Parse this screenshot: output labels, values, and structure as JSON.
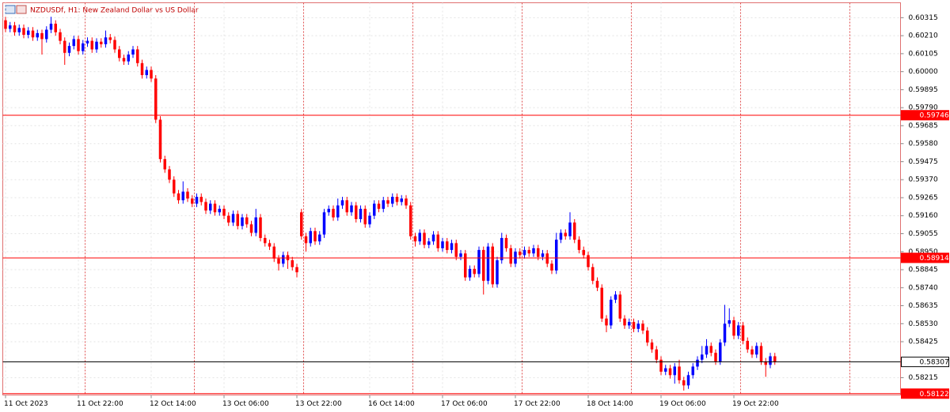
{
  "chart_data": {
    "type": "candlestick",
    "title": "NZDUSDf, H1:  New Zealand Dollar vs US Dollar",
    "categories": [
      "11 Oct 2023",
      null,
      null,
      null,
      null,
      null,
      null,
      null,
      null,
      null,
      null,
      null,
      null,
      null,
      null,
      null,
      "11 Oct 22:00",
      null,
      null,
      null,
      null,
      null,
      null,
      null,
      null,
      null,
      null,
      null,
      null,
      null,
      null,
      null,
      "12 Oct 14:00",
      null,
      null,
      null,
      null,
      null,
      null,
      null,
      null,
      null,
      null,
      null,
      null,
      null,
      null,
      null,
      "13 Oct 06:00",
      null,
      null,
      null,
      null,
      null,
      null,
      null,
      null,
      null,
      null,
      null,
      null,
      null,
      null,
      null,
      "13 Oct 22:00",
      null,
      null,
      null,
      null,
      null,
      null,
      null,
      null,
      null,
      null,
      null,
      null,
      null,
      null,
      null,
      "16 Oct 14:00",
      null,
      null,
      null,
      null,
      null,
      null,
      null,
      null,
      null,
      null,
      null,
      null,
      null,
      null,
      null,
      "17 Oct 06:00",
      null,
      null,
      null,
      null,
      null,
      null,
      null,
      null,
      null,
      null,
      null,
      null,
      null,
      null,
      null,
      "17 Oct 22:00",
      null,
      null,
      null,
      null,
      null,
      null,
      null,
      null,
      null,
      null,
      null,
      null,
      null,
      null,
      null,
      "18 Oct 14:00",
      null,
      null,
      null,
      null,
      null,
      null,
      null,
      null,
      null,
      null,
      null,
      null,
      null,
      null,
      null,
      "19 Oct 06:00",
      null,
      null,
      null,
      null,
      null,
      null,
      null,
      null,
      null,
      null,
      null,
      null,
      null,
      null,
      null,
      "19 Oct 22:00",
      null,
      null,
      null,
      null,
      null,
      null,
      null,
      null,
      null
    ],
    "open": [
      0.603,
      0.6025,
      0.6027,
      0.6023,
      0.60255,
      0.60215,
      0.6024,
      0.602,
      0.60225,
      0.6019,
      0.60245,
      0.6028,
      0.6023,
      0.6018,
      0.6011,
      0.6015,
      0.6019,
      0.6012,
      0.60165,
      0.6018,
      0.6013,
      0.60175,
      0.6016,
      0.602,
      0.60185,
      0.6013,
      0.6008,
      0.6006,
      0.601,
      0.6013,
      0.6005,
      0.5998,
      0.6001,
      0.5996,
      0.5972,
      0.5949,
      0.5943,
      0.5937,
      0.5929,
      0.5925,
      0.593,
      0.5926,
      0.5923,
      0.5927,
      0.5924,
      0.5919,
      0.5923,
      0.5918,
      0.592,
      0.5916,
      0.5912,
      0.5917,
      0.591,
      0.5915,
      0.5911,
      0.5906,
      0.5915,
      0.5903,
      0.59,
      0.5898,
      0.5891,
      0.5888,
      0.5893,
      0.589,
      0.5886,
      0.5918,
      0.5904,
      0.59,
      0.5907,
      0.5901,
      0.5905,
      0.5918,
      0.592,
      0.5915,
      0.5922,
      0.5925,
      0.5918,
      0.5922,
      0.5914,
      0.592,
      0.5911,
      0.5916,
      0.5923,
      0.592,
      0.5925,
      0.5923,
      0.5927,
      0.5924,
      0.5926,
      0.5922,
      0.5904,
      0.5901,
      0.5906,
      0.5899,
      0.5901,
      0.5905,
      0.5897,
      0.5901,
      0.5896,
      0.59,
      0.5892,
      0.5894,
      0.588,
      0.5885,
      0.5882,
      0.5896,
      0.5878,
      0.5898,
      0.5876,
      0.589,
      0.5903,
      0.5897,
      0.5888,
      0.5895,
      0.5893,
      0.5896,
      0.5894,
      0.5897,
      0.5892,
      0.5894,
      0.5888,
      0.5884,
      0.5902,
      0.5906,
      0.5904,
      0.5912,
      0.5902,
      0.5896,
      0.5893,
      0.5886,
      0.5878,
      0.5874,
      0.5856,
      0.5852,
      0.5867,
      0.587,
      0.5856,
      0.5852,
      0.5854,
      0.585,
      0.5853,
      0.5849,
      0.5842,
      0.5838,
      0.5832,
      0.5825,
      0.5827,
      0.5823,
      0.5828,
      0.582,
      0.5817,
      0.5823,
      0.5828,
      0.5832,
      0.5835,
      0.584,
      0.5836,
      0.5831,
      0.5842,
      0.5853,
      0.5855,
      0.5846,
      0.5852,
      0.5843,
      0.5838,
      0.5835,
      0.584,
      0.5831,
      0.5829,
      0.5834
    ],
    "high": [
      0.6032,
      0.6029,
      0.6029,
      0.60275,
      0.60275,
      0.6026,
      0.6026,
      0.60245,
      0.60245,
      0.60265,
      0.6032,
      0.603,
      0.6025,
      0.602,
      0.6017,
      0.6021,
      0.6021,
      0.60185,
      0.602,
      0.602,
      0.60195,
      0.60195,
      0.6024,
      0.6022,
      0.60205,
      0.6015,
      0.601,
      0.6012,
      0.6015,
      0.6015,
      0.6007,
      0.6003,
      0.6003,
      0.5998,
      0.5974,
      0.5951,
      0.5945,
      0.5939,
      0.5931,
      0.5936,
      0.5932,
      0.5928,
      0.5929,
      0.5929,
      0.5926,
      0.5925,
      0.5925,
      0.5922,
      0.5922,
      0.5918,
      0.5919,
      0.5919,
      0.5917,
      0.5917,
      0.5913,
      0.592,
      0.5917,
      0.5905,
      0.5902,
      0.59,
      0.5893,
      0.5895,
      0.5895,
      0.5892,
      0.5888,
      0.592,
      0.5906,
      0.5909,
      0.5909,
      0.5907,
      0.592,
      0.5922,
      0.5922,
      0.5926,
      0.5927,
      0.5927,
      0.5924,
      0.5924,
      0.5922,
      0.5922,
      0.5918,
      0.5925,
      0.5925,
      0.5927,
      0.5927,
      0.5929,
      0.5929,
      0.5928,
      0.5928,
      0.5924,
      0.5906,
      0.5908,
      0.5908,
      0.5903,
      0.5907,
      0.5907,
      0.5903,
      0.5903,
      0.5902,
      0.5902,
      0.5896,
      0.5896,
      0.5887,
      0.5887,
      0.5898,
      0.5898,
      0.59,
      0.59,
      0.5892,
      0.5906,
      0.5905,
      0.5899,
      0.5897,
      0.5897,
      0.5898,
      0.5898,
      0.5899,
      0.5899,
      0.5896,
      0.5896,
      0.589,
      0.5906,
      0.5908,
      0.5908,
      0.5918,
      0.5914,
      0.5904,
      0.5898,
      0.5895,
      0.5888,
      0.588,
      0.5876,
      0.5858,
      0.5869,
      0.5872,
      0.5872,
      0.5858,
      0.5856,
      0.5856,
      0.5855,
      0.5855,
      0.5851,
      0.5844,
      0.584,
      0.5834,
      0.5829,
      0.5829,
      0.583,
      0.5832,
      0.5822,
      0.5825,
      0.583,
      0.5834,
      0.584,
      0.5844,
      0.5842,
      0.5838,
      0.5844,
      0.5864,
      0.5862,
      0.5857,
      0.5854,
      0.5854,
      0.5845,
      0.584,
      0.5842,
      0.5842,
      0.5833,
      0.5836,
      0.5836
    ],
    "low": [
      0.6023,
      0.6023,
      0.6021,
      0.6021,
      0.60195,
      0.60195,
      0.6018,
      0.6018,
      0.601,
      0.6017,
      0.60225,
      0.6021,
      0.6016,
      0.6004,
      0.6009,
      0.6013,
      0.601,
      0.601,
      0.60145,
      0.6011,
      0.6011,
      0.6014,
      0.6014,
      0.60165,
      0.6011,
      0.6006,
      0.6004,
      0.6004,
      0.6008,
      0.6003,
      0.5996,
      0.5996,
      0.5994,
      0.597,
      0.5947,
      0.5941,
      0.5935,
      0.5927,
      0.5923,
      0.5923,
      0.5924,
      0.5921,
      0.5921,
      0.5922,
      0.5917,
      0.5917,
      0.5916,
      0.5916,
      0.5914,
      0.591,
      0.591,
      0.5908,
      0.5908,
      0.5909,
      0.5904,
      0.5904,
      0.5901,
      0.5898,
      0.5896,
      0.5889,
      0.5884,
      0.5886,
      0.5885,
      0.5884,
      0.588,
      0.5902,
      0.5895,
      0.5898,
      0.5899,
      0.5899,
      0.5903,
      0.5916,
      0.5913,
      0.5913,
      0.592,
      0.5916,
      0.5916,
      0.5912,
      0.5912,
      0.5909,
      0.5909,
      0.5914,
      0.5918,
      0.5918,
      0.5921,
      0.5921,
      0.5922,
      0.5922,
      0.592,
      0.5902,
      0.5898,
      0.5899,
      0.5897,
      0.5897,
      0.5899,
      0.5895,
      0.5895,
      0.5894,
      0.5894,
      0.589,
      0.589,
      0.5878,
      0.5878,
      0.588,
      0.588,
      0.587,
      0.5876,
      0.5874,
      0.5874,
      0.5888,
      0.5895,
      0.5886,
      0.5886,
      0.5891,
      0.5891,
      0.5892,
      0.5892,
      0.589,
      0.589,
      0.5886,
      0.5882,
      0.5882,
      0.59,
      0.5902,
      0.5902,
      0.59,
      0.5894,
      0.5891,
      0.5884,
      0.5876,
      0.5872,
      0.5854,
      0.5848,
      0.585,
      0.5865,
      0.5854,
      0.585,
      0.585,
      0.5848,
      0.5848,
      0.5847,
      0.584,
      0.5836,
      0.583,
      0.5823,
      0.5823,
      0.5821,
      0.5818,
      0.5818,
      0.5814,
      0.5815,
      0.5821,
      0.5826,
      0.583,
      0.5833,
      0.5834,
      0.5829,
      0.5829,
      0.584,
      0.5851,
      0.5844,
      0.5844,
      0.5841,
      0.5836,
      0.5833,
      0.5833,
      0.5829,
      0.5822,
      0.5827,
      0.5829
    ],
    "close": [
      0.6025,
      0.6027,
      0.6023,
      0.60255,
      0.60215,
      0.6024,
      0.602,
      0.60225,
      0.6019,
      0.60245,
      0.6028,
      0.6023,
      0.6018,
      0.6011,
      0.6015,
      0.6019,
      0.6012,
      0.60165,
      0.6018,
      0.6013,
      0.60175,
      0.6016,
      0.602,
      0.60185,
      0.6013,
      0.6008,
      0.6006,
      0.601,
      0.6013,
      0.6005,
      0.5998,
      0.6001,
      0.5996,
      0.5972,
      0.5949,
      0.5943,
      0.5937,
      0.5929,
      0.5925,
      0.593,
      0.5926,
      0.5923,
      0.5927,
      0.5924,
      0.5919,
      0.5923,
      0.5918,
      0.592,
      0.5916,
      0.5912,
      0.5917,
      0.591,
      0.5915,
      0.5911,
      0.5906,
      0.5915,
      0.5903,
      0.59,
      0.5898,
      0.5891,
      0.5888,
      0.5893,
      0.589,
      0.5886,
      0.5883,
      0.5904,
      0.59,
      0.5907,
      0.5901,
      0.5905,
      0.5918,
      0.592,
      0.5915,
      0.5922,
      0.5925,
      0.5918,
      0.5922,
      0.5914,
      0.592,
      0.5911,
      0.5916,
      0.5923,
      0.592,
      0.5925,
      0.5923,
      0.5927,
      0.5924,
      0.5926,
      0.5922,
      0.5904,
      0.5901,
      0.5906,
      0.5899,
      0.5901,
      0.5905,
      0.5897,
      0.5901,
      0.5896,
      0.59,
      0.5892,
      0.5894,
      0.588,
      0.5885,
      0.5882,
      0.5896,
      0.5878,
      0.5898,
      0.5876,
      0.589,
      0.5903,
      0.5897,
      0.5888,
      0.5895,
      0.5893,
      0.5896,
      0.5894,
      0.5897,
      0.5892,
      0.5894,
      0.5888,
      0.5884,
      0.5902,
      0.5906,
      0.5904,
      0.5912,
      0.5902,
      0.5896,
      0.5893,
      0.5886,
      0.5878,
      0.5874,
      0.5856,
      0.5852,
      0.5867,
      0.587,
      0.5856,
      0.5852,
      0.5854,
      0.585,
      0.5853,
      0.5849,
      0.5842,
      0.5838,
      0.5832,
      0.5825,
      0.5827,
      0.5823,
      0.5828,
      0.582,
      0.5817,
      0.5823,
      0.5828,
      0.5832,
      0.5835,
      0.584,
      0.5836,
      0.5831,
      0.5842,
      0.5853,
      0.5855,
      0.5846,
      0.5852,
      0.5843,
      0.5838,
      0.5835,
      0.584,
      0.5831,
      0.5829,
      0.5834,
      0.58307
    ],
    "up_color": "#0000ff",
    "down_color": "#ff0000",
    "ylim": [
      0.58114,
      0.60402
    ],
    "yticks": [
      0.60315,
      {
        "value": 0.6021,
        "label": "0.60210"
      },
      0.60105,
      {
        "value": 0.6,
        "label": "0.60000"
      },
      0.59895,
      {
        "value": 0.5979,
        "label": "0.59790"
      },
      0.59685,
      {
        "value": 0.5958,
        "label": "0.59580"
      },
      0.59475,
      {
        "value": 0.5937,
        "label": "0.59370"
      },
      0.59265,
      {
        "value": 0.5916,
        "label": "0.59160"
      },
      0.59055,
      {
        "value": 0.5895,
        "label": "0.58950"
      },
      0.58845,
      {
        "value": 0.5874,
        "label": "0.58740"
      },
      0.58635,
      {
        "value": 0.5853,
        "label": "0.58530"
      },
      0.58425,
      0.58215
    ],
    "grid": true,
    "levels": [
      {
        "value": 0.59746,
        "color": "#ff0000"
      },
      {
        "value": 0.58914,
        "color": "#ff0000"
      },
      {
        "value": 0.58307,
        "color": "#000000"
      },
      {
        "value": 0.58122,
        "color": "#ff0000"
      }
    ]
  }
}
